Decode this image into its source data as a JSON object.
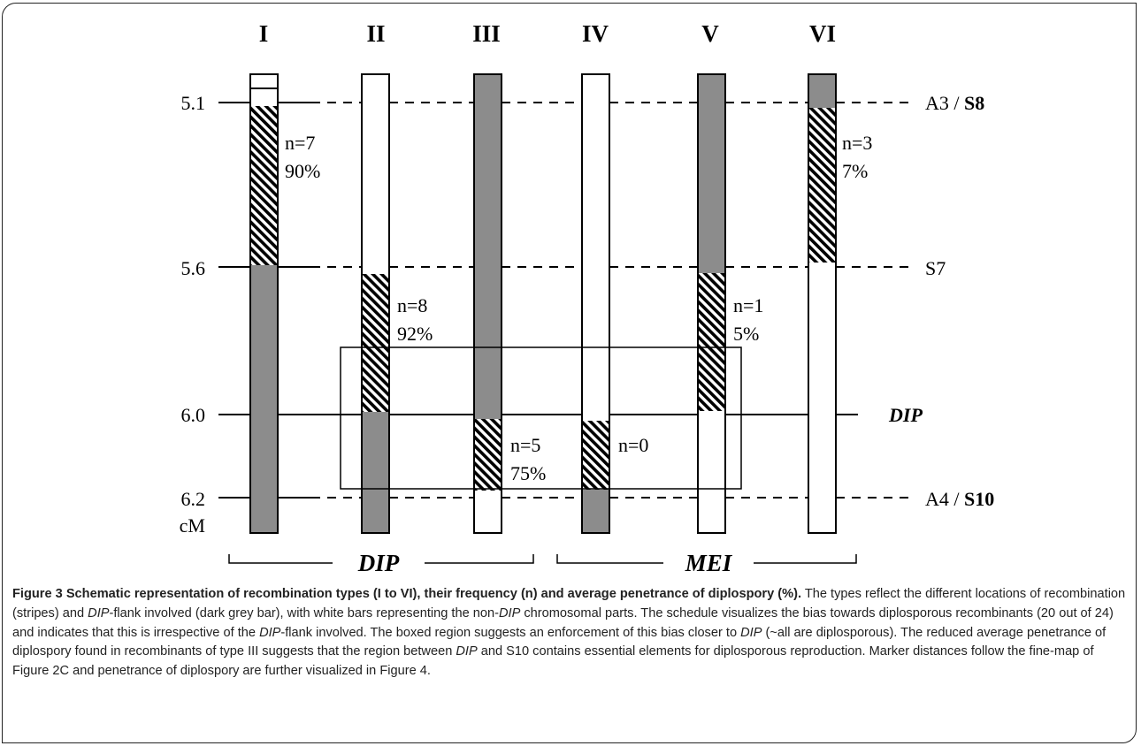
{
  "diagram": {
    "type_labels": [
      "I",
      "II",
      "III",
      "IV",
      "V",
      "VI"
    ],
    "markers": [
      {
        "position": "5.1",
        "label_plain": "A3 / ",
        "label_bold": "S8",
        "label_italic_bold": ""
      },
      {
        "position": "5.6",
        "label_plain": "S7",
        "label_bold": "",
        "label_italic_bold": ""
      },
      {
        "position": "6.0",
        "label_plain": "",
        "label_bold": "",
        "label_italic_bold": "DIP"
      },
      {
        "position": "6.2",
        "label_plain": "A4 / ",
        "label_bold": "S10",
        "label_italic_bold": ""
      }
    ],
    "unit": "cM",
    "annotations": [
      {
        "type": "I",
        "n": "n=7",
        "pct": "90%"
      },
      {
        "type": "II",
        "n": "n=8",
        "pct": "92%"
      },
      {
        "type": "III",
        "n": "n=5",
        "pct": "75%"
      },
      {
        "type": "IV",
        "n": "n=0",
        "pct": ""
      },
      {
        "type": "V",
        "n": "n=1",
        "pct": "5%"
      },
      {
        "type": "VI",
        "n": "n=3",
        "pct": "7%"
      }
    ],
    "bars": [
      {
        "type": "I",
        "segments": [
          [
            "white",
            "5.1",
            "5.1"
          ],
          [
            "hatch",
            "5.1",
            "5.6"
          ],
          [
            "grey",
            "5.6",
            "6.2+"
          ]
        ]
      },
      {
        "type": "II",
        "segments": [
          [
            "white",
            "top",
            "5.6"
          ],
          [
            "hatch",
            "5.6",
            "6.0"
          ],
          [
            "grey",
            "6.0",
            "6.2+"
          ]
        ]
      },
      {
        "type": "III",
        "segments": [
          [
            "grey",
            "top",
            "6.0"
          ],
          [
            "hatch",
            "6.0",
            "6.2"
          ],
          [
            "white",
            "6.2",
            "6.2+"
          ]
        ]
      },
      {
        "type": "IV",
        "segments": [
          [
            "white",
            "top",
            "6.0"
          ],
          [
            "hatch",
            "6.0",
            "6.2"
          ],
          [
            "grey",
            "6.2",
            "6.2+"
          ]
        ]
      },
      {
        "type": "V",
        "segments": [
          [
            "grey",
            "top",
            "5.6"
          ],
          [
            "hatch",
            "5.6",
            "6.0"
          ],
          [
            "white",
            "6.0",
            "6.2+"
          ]
        ]
      },
      {
        "type": "VI",
        "segments": [
          [
            "grey",
            "top",
            "5.1"
          ],
          [
            "hatch",
            "5.1",
            "5.6"
          ],
          [
            "white",
            "5.6",
            "6.2+"
          ]
        ]
      }
    ],
    "groups": [
      {
        "label": "DIP",
        "types": [
          "I",
          "II",
          "III"
        ]
      },
      {
        "label": "MEI",
        "types": [
          "IV",
          "V",
          "VI"
        ]
      }
    ],
    "colors": {
      "grey": "#8c8c8c",
      "hatch": "#000000",
      "line": "#000000"
    }
  },
  "caption": {
    "title": "Figure 3 Schematic representation of recombination types (I to VI), their frequency (n) and average penetrance of diplospory (%)",
    "title_end": ".",
    "p1": " The types reflect the different locations of recombination (stripes) and ",
    "dip1": "DIP",
    "p2": "-flank involved (dark grey bar), with white bars representing the non-",
    "dip2": "DIP",
    "p3": " chromosomal parts. The schedule visualizes the bias towards diplosporous recombinants (20 out of 24) and indicates that this is irrespective of the ",
    "dip3": "DIP",
    "p4": "-flank involved. The boxed region suggests an enforcement of this bias closer to ",
    "dip4": "DIP",
    "p5": " (~all are diplosporous). The reduced average penetrance of diplospory found in recombinants of type III suggests that the region between ",
    "dip5": "DIP",
    "p6": " and S10 contains essential elements for diplosporous reproduction. Marker distances follow the fine-map of Figure 2C and penetrance of diplospory are further visualized in Figure 4."
  }
}
